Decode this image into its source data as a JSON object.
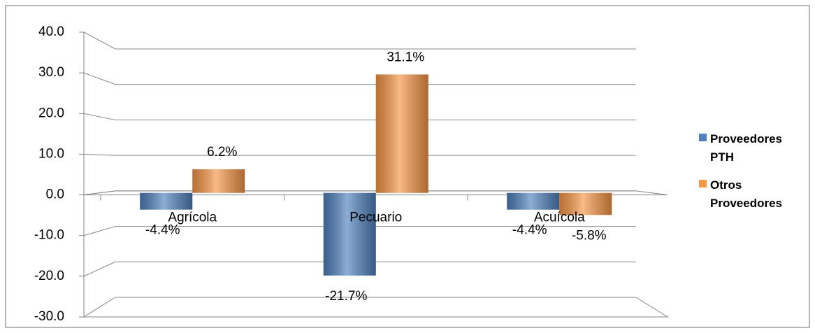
{
  "chart_data": {
    "type": "bar",
    "categories": [
      "Agrícola",
      "Pecuario",
      "Acuícola"
    ],
    "series": [
      {
        "name": "Proveedores PTH",
        "color": "#4f81bd",
        "values": [
          -4.4,
          -21.7,
          -4.4
        ],
        "value_labels": [
          "-4.4%",
          "-21.7%",
          "-4.4%"
        ]
      },
      {
        "name": "Otros Proveedores",
        "color": "#f79646",
        "values": [
          6.2,
          31.1,
          -5.8
        ],
        "value_labels": [
          "6.2%",
          "31.1%",
          "-5.8%"
        ]
      }
    ],
    "ylim": [
      -30,
      40
    ],
    "yticks": [
      {
        "value": -30,
        "label": "-30.0"
      },
      {
        "value": -20,
        "label": "-20.0"
      },
      {
        "value": -10,
        "label": "-10.0"
      },
      {
        "value": 0,
        "label": "0.0"
      },
      {
        "value": 10,
        "label": "10.0"
      },
      {
        "value": 20,
        "label": "20.0"
      },
      {
        "value": 30,
        "label": "30.0"
      },
      {
        "value": 40,
        "label": "40.0"
      }
    ],
    "grid": true,
    "legend": "right"
  }
}
